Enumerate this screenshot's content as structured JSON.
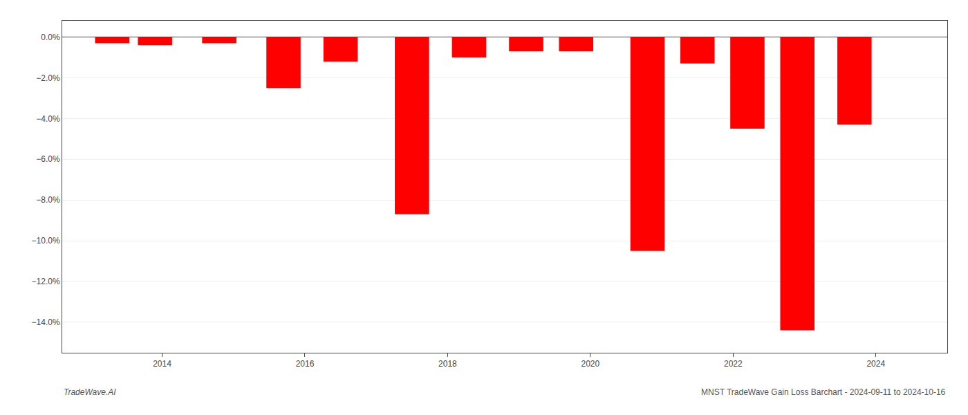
{
  "chart_data": {
    "type": "bar",
    "x": [
      2013.3,
      2013.9,
      2014.8,
      2015.7,
      2016.5,
      2017.5,
      2018.3,
      2019.1,
      2019.8,
      2020.8,
      2021.5,
      2022.2,
      2022.9,
      2023.7
    ],
    "values": [
      -0.003,
      -0.004,
      -0.003,
      -0.025,
      -0.012,
      -0.087,
      -0.01,
      -0.007,
      -0.007,
      -0.105,
      -0.013,
      -0.045,
      -0.144,
      -0.043
    ],
    "color": "#ff0000",
    "xlim": [
      2012.6,
      2025.0
    ],
    "xticks": [
      2014,
      2016,
      2018,
      2020,
      2022,
      2024
    ],
    "ylim": [
      -0.155,
      0.008
    ],
    "yticks": [
      {
        "value": 0.0,
        "label": "0.0%"
      },
      {
        "value": -0.02,
        "label": "−2.0%"
      },
      {
        "value": -0.04,
        "label": "−4.0%"
      },
      {
        "value": -0.06,
        "label": "−6.0%"
      },
      {
        "value": -0.08,
        "label": "−8.0%"
      },
      {
        "value": -0.1,
        "label": "−10.0%"
      },
      {
        "value": -0.12,
        "label": "−12.0%"
      },
      {
        "value": -0.14,
        "label": "−14.0%"
      }
    ],
    "grid": true,
    "annotations": [
      "TradeWave.AI",
      "MNST TradeWave Gain Loss Barchart - 2024-09-11 to 2024-10-16"
    ]
  }
}
